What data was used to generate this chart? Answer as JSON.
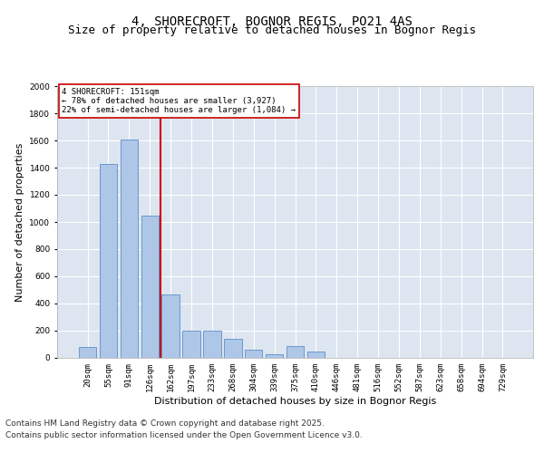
{
  "title1": "4, SHORECROFT, BOGNOR REGIS, PO21 4AS",
  "title2": "Size of property relative to detached houses in Bognor Regis",
  "xlabel": "Distribution of detached houses by size in Bognor Regis",
  "ylabel": "Number of detached properties",
  "categories": [
    "20sqm",
    "55sqm",
    "91sqm",
    "126sqm",
    "162sqm",
    "197sqm",
    "233sqm",
    "268sqm",
    "304sqm",
    "339sqm",
    "375sqm",
    "410sqm",
    "446sqm",
    "481sqm",
    "516sqm",
    "552sqm",
    "587sqm",
    "623sqm",
    "658sqm",
    "694sqm",
    "729sqm"
  ],
  "values": [
    80,
    1430,
    1610,
    1050,
    470,
    200,
    200,
    140,
    60,
    30,
    90,
    50,
    0,
    0,
    0,
    0,
    0,
    0,
    0,
    0,
    0
  ],
  "bar_color": "#aec6e8",
  "bar_edge_color": "#5b8fc9",
  "vline_x_index": 4,
  "vline_color": "#cc0000",
  "ylim": [
    0,
    2000
  ],
  "yticks": [
    0,
    200,
    400,
    600,
    800,
    1000,
    1200,
    1400,
    1600,
    1800,
    2000
  ],
  "annotation_text": "4 SHORECROFT: 151sqm\n← 78% of detached houses are smaller (3,927)\n22% of semi-detached houses are larger (1,084) →",
  "annotation_box_color": "#ffffff",
  "annotation_box_edge": "#cc0000",
  "footer1": "Contains HM Land Registry data © Crown copyright and database right 2025.",
  "footer2": "Contains public sector information licensed under the Open Government Licence v3.0.",
  "plot_bg": "#dde5f0",
  "title_fontsize": 10,
  "subtitle_fontsize": 9,
  "axis_label_fontsize": 8,
  "tick_fontsize": 6.5,
  "footer_fontsize": 6.5
}
